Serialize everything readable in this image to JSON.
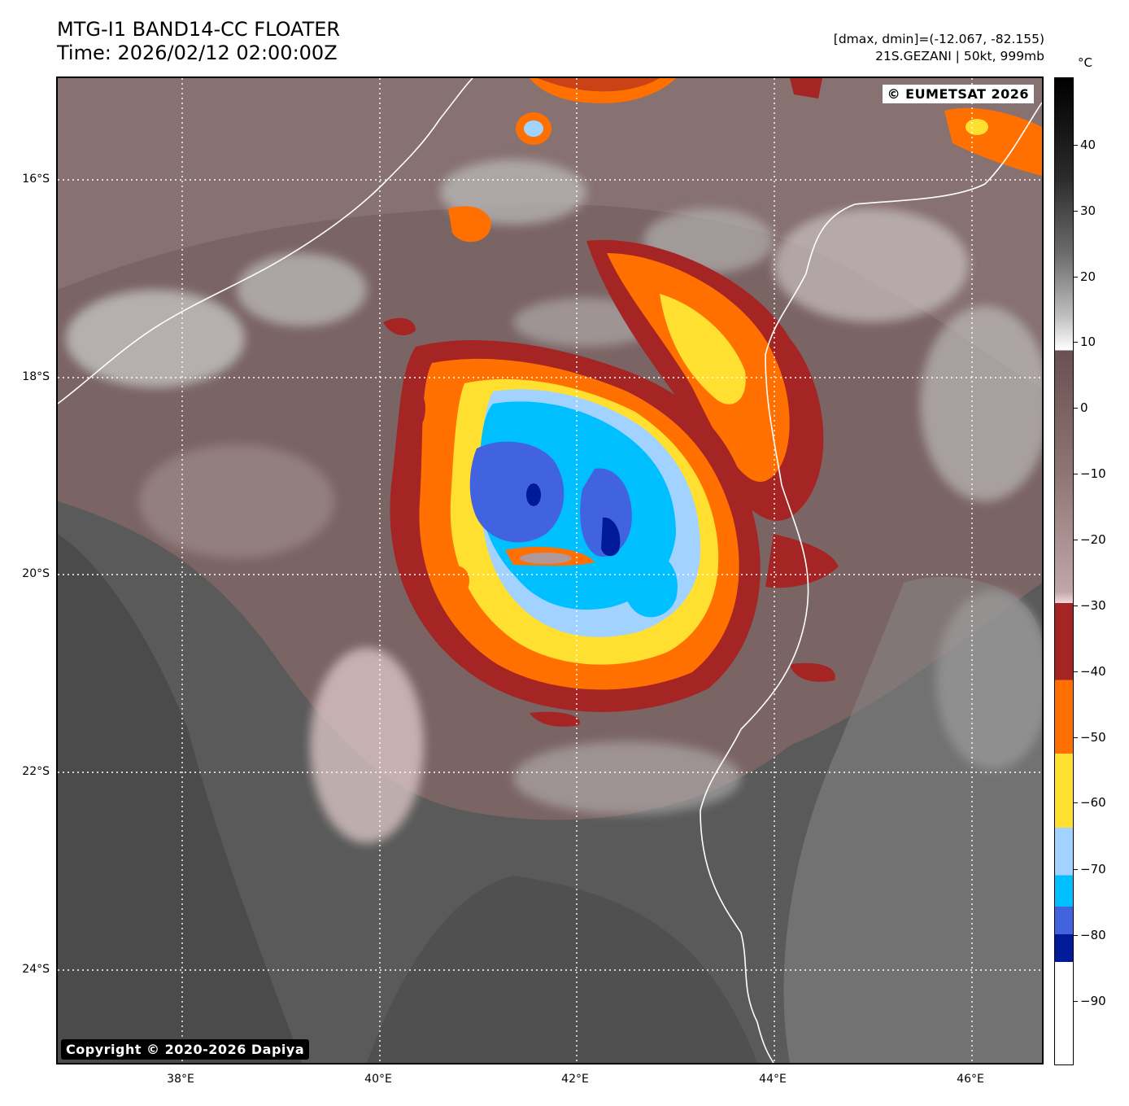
{
  "header": {
    "title_line1": "MTG-I1 BAND14-CC FLOATER",
    "title_line2": "Time: 2026/02/12 02:00:00Z",
    "range_text": "[dmax, dmin]=(-12.067, -82.155)",
    "storm_text": "21S.GEZANI | 50kt, 999mb"
  },
  "map": {
    "copyright_top": "© EUMETSAT 2026",
    "copyright_bottom": "Copyright © 2020-2026 Dapiya",
    "lat_labels": [
      "16°S",
      "18°S",
      "20°S",
      "22°S",
      "24°S"
    ],
    "lon_labels": [
      "38°E",
      "40°E",
      "42°E",
      "44°E",
      "46°E"
    ]
  },
  "colorbar": {
    "unit": "°C",
    "tick_labels": [
      "40",
      "30",
      "20",
      "10",
      "0",
      "−10",
      "−20",
      "−30",
      "−40",
      "−50",
      "−60",
      "−70",
      "−80",
      "−90"
    ]
  }
}
